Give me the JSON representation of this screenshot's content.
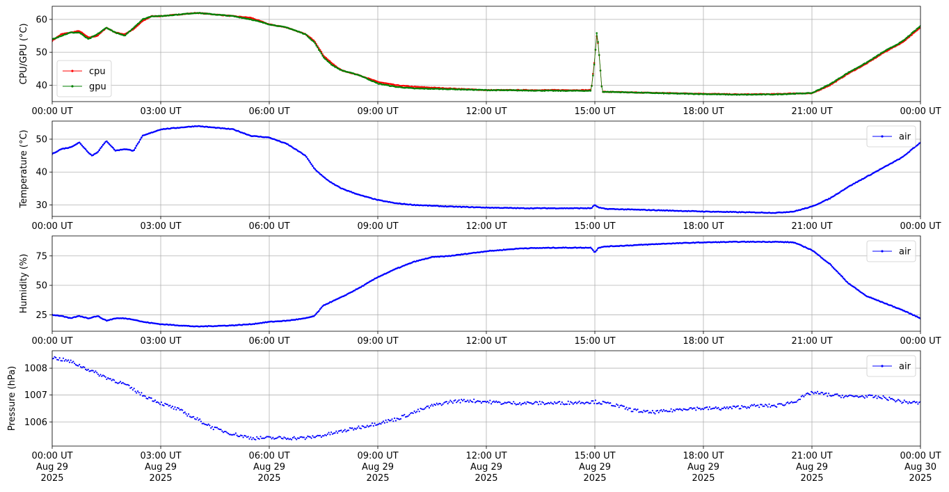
{
  "chart_data": [
    {
      "type": "line",
      "ylabel": "CPU/GPU (°C)",
      "xlim": [
        "00:00",
        "24:00"
      ],
      "ylim": [
        35,
        64
      ],
      "yticks": [
        40,
        50,
        60
      ],
      "xtick_labels": [
        "00:00 UT",
        "03:00 UT",
        "06:00 UT",
        "09:00 UT",
        "12:00 UT",
        "15:00 UT",
        "18:00 UT",
        "21:00 UT",
        "00:00 UT"
      ],
      "grid": true,
      "legend": "lower-left",
      "series": [
        {
          "name": "cpu",
          "color": "#ff0000",
          "x": [
            0,
            0.25,
            0.5,
            0.75,
            1.0,
            1.25,
            1.5,
            1.75,
            2.0,
            2.25,
            2.5,
            2.75,
            3.0,
            3.5,
            4.0,
            4.5,
            5.0,
            5.5,
            6.0,
            6.5,
            7.0,
            7.25,
            7.5,
            7.75,
            8.0,
            8.5,
            9.0,
            9.5,
            10.0,
            11,
            12,
            13,
            14,
            14.9,
            15.0,
            15.05,
            15.1,
            15.2,
            16,
            17,
            18,
            19,
            20,
            20.5,
            21.0,
            21.5,
            22.0,
            22.5,
            23.0,
            23.5,
            24.0
          ],
          "y": [
            53.5,
            55.5,
            56.0,
            56.5,
            54.5,
            55.0,
            57.5,
            56.0,
            55.5,
            57.0,
            59.5,
            61.0,
            61.0,
            61.5,
            62.0,
            61.5,
            61.0,
            60.5,
            58.5,
            57.5,
            55.5,
            53.5,
            49.0,
            46.5,
            44.5,
            43.0,
            41.0,
            40.0,
            39.5,
            39.0,
            38.5,
            38.5,
            38.5,
            38.5,
            48.5,
            55.0,
            52.0,
            38.0,
            37.8,
            37.6,
            37.4,
            37.2,
            37.3,
            37.5,
            37.5,
            40.0,
            43.5,
            46.5,
            50.0,
            53.0,
            57.5
          ]
        },
        {
          "name": "gpu",
          "color": "#008000",
          "x": [
            0,
            0.25,
            0.5,
            0.75,
            1.0,
            1.25,
            1.5,
            1.75,
            2.0,
            2.25,
            2.5,
            2.75,
            3.0,
            3.5,
            4.0,
            4.5,
            5.0,
            5.5,
            6.0,
            6.5,
            7.0,
            7.25,
            7.5,
            7.75,
            8.0,
            8.5,
            9.0,
            9.5,
            10.0,
            11,
            12,
            13,
            14,
            14.9,
            15.0,
            15.05,
            15.1,
            15.2,
            16,
            17,
            18,
            19,
            20,
            20.5,
            21.0,
            21.5,
            22.0,
            22.5,
            23.0,
            23.5,
            24.0
          ],
          "y": [
            54.0,
            55.0,
            56.0,
            56.0,
            54.0,
            55.5,
            57.5,
            56.0,
            55.0,
            57.5,
            60.0,
            61.0,
            61.0,
            61.5,
            62.0,
            61.5,
            61.0,
            60.0,
            58.5,
            57.5,
            55.5,
            53.0,
            48.5,
            46.0,
            44.5,
            43.0,
            40.5,
            39.5,
            39.0,
            38.8,
            38.5,
            38.4,
            38.3,
            38.3,
            48.0,
            56.0,
            52.0,
            38.0,
            37.8,
            37.5,
            37.3,
            37.1,
            37.2,
            37.4,
            37.6,
            40.3,
            43.8,
            46.8,
            50.3,
            53.3,
            58.0
          ]
        }
      ]
    },
    {
      "type": "line",
      "ylabel": "Temperature (°C)",
      "xlim": [
        "00:00",
        "24:00"
      ],
      "ylim": [
        26.5,
        55.5
      ],
      "yticks": [
        30,
        40,
        50
      ],
      "xtick_labels": [
        "00:00 UT",
        "03:00 UT",
        "06:00 UT",
        "09:00 UT",
        "12:00 UT",
        "15:00 UT",
        "18:00 UT",
        "21:00 UT",
        "00:00 UT"
      ],
      "grid": true,
      "legend": "upper-right",
      "series": [
        {
          "name": "air",
          "color": "#0000ff",
          "x": [
            0,
            0.25,
            0.5,
            0.75,
            1.0,
            1.1,
            1.25,
            1.5,
            1.75,
            2.0,
            2.25,
            2.5,
            2.75,
            3.0,
            3.5,
            4.0,
            4.5,
            5.0,
            5.5,
            6.0,
            6.5,
            7.0,
            7.25,
            7.5,
            7.75,
            8.0,
            8.5,
            9.0,
            9.5,
            10.0,
            11,
            12,
            13,
            14,
            14.9,
            15.0,
            15.1,
            15.3,
            16,
            17,
            18,
            19,
            20,
            20.5,
            21.0,
            21.5,
            22.0,
            22.5,
            23.0,
            23.5,
            24.0
          ],
          "y": [
            45.5,
            47.0,
            47.5,
            49.0,
            46.0,
            45.0,
            46.0,
            49.5,
            46.5,
            47.0,
            46.5,
            51.0,
            52.0,
            53.0,
            53.5,
            54.0,
            53.5,
            53.0,
            51.0,
            50.5,
            48.5,
            45.0,
            41.0,
            38.5,
            36.5,
            35.0,
            33.0,
            31.5,
            30.5,
            30.0,
            29.5,
            29.2,
            29.0,
            29.0,
            29.0,
            30.0,
            29.2,
            28.8,
            28.6,
            28.3,
            28.0,
            27.8,
            27.6,
            28.0,
            29.5,
            32.0,
            35.5,
            38.5,
            41.5,
            44.5,
            49.0
          ]
        }
      ]
    },
    {
      "type": "line",
      "ylabel": "Humidity (%)",
      "xlim": [
        "00:00",
        "24:00"
      ],
      "ylim": [
        11,
        92
      ],
      "yticks": [
        25,
        50,
        75
      ],
      "xtick_labels": [
        "00:00 UT",
        "03:00 UT",
        "06:00 UT",
        "09:00 UT",
        "12:00 UT",
        "15:00 UT",
        "18:00 UT",
        "21:00 UT",
        "00:00 UT"
      ],
      "grid": true,
      "legend": "upper-right",
      "series": [
        {
          "name": "air",
          "color": "#0000ff",
          "x": [
            0,
            0.25,
            0.5,
            0.75,
            1.0,
            1.25,
            1.5,
            1.75,
            2.0,
            2.25,
            2.5,
            2.75,
            3.0,
            3.5,
            4.0,
            4.5,
            5.0,
            5.5,
            6.0,
            6.5,
            7.0,
            7.25,
            7.5,
            8.0,
            8.5,
            9.0,
            9.5,
            10.0,
            10.5,
            11,
            12,
            13,
            14,
            14.9,
            15.0,
            15.1,
            15.3,
            16,
            17,
            18,
            19,
            19.5,
            20,
            20.5,
            21.0,
            21.5,
            22.0,
            22.5,
            23.0,
            23.5,
            24.0
          ],
          "y": [
            25.0,
            24.0,
            22.0,
            24.0,
            22.0,
            24.0,
            20.0,
            22.0,
            22.0,
            21.0,
            19.0,
            18.0,
            17.0,
            16.0,
            15.0,
            15.5,
            16.0,
            17.0,
            19.0,
            20.0,
            22.0,
            24.0,
            33.0,
            40.0,
            48.0,
            57.0,
            64.0,
            70.0,
            74.0,
            75.0,
            79.0,
            81.5,
            82.0,
            82.0,
            78.0,
            82.0,
            83.0,
            84.0,
            85.5,
            86.5,
            87.0,
            87.0,
            87.0,
            86.5,
            80.0,
            68.0,
            52.0,
            41.0,
            35.0,
            29.0,
            22.0
          ]
        }
      ]
    },
    {
      "type": "scatter",
      "ylabel": "Pressure (hPa)",
      "xlim": [
        "2025-08-29 00:00",
        "2025-08-30 00:00"
      ],
      "ylim": [
        1005.1,
        1008.65
      ],
      "yticks": [
        1006,
        1007,
        1008
      ],
      "xtick_labels": [
        [
          "00:00 UT",
          "Aug 29",
          "2025"
        ],
        [
          "03:00 UT",
          "Aug 29",
          "2025"
        ],
        [
          "06:00 UT",
          "Aug 29",
          "2025"
        ],
        [
          "09:00 UT",
          "Aug 29",
          "2025"
        ],
        [
          "12:00 UT",
          "Aug 29",
          "2025"
        ],
        [
          "15:00 UT",
          "Aug 29",
          "2025"
        ],
        [
          "18:00 UT",
          "Aug 29",
          "2025"
        ],
        [
          "21:00 UT",
          "Aug 29",
          "2025"
        ],
        [
          "00:00 UT",
          "Aug 30",
          "2025"
        ]
      ],
      "grid": true,
      "legend": "upper-right",
      "series": [
        {
          "name": "air",
          "color": "#0000ff",
          "x": [
            0,
            0.5,
            1.0,
            1.5,
            2.0,
            2.5,
            3.0,
            3.5,
            4.0,
            4.5,
            5.0,
            5.5,
            6.0,
            6.5,
            7.0,
            7.5,
            8.0,
            8.5,
            9.0,
            9.5,
            10.0,
            10.5,
            11.0,
            11.5,
            12.0,
            12.5,
            13.0,
            14.0,
            15.0,
            15.5,
            16.0,
            16.5,
            17.0,
            17.5,
            18.0,
            18.5,
            19.0,
            19.5,
            20.0,
            20.5,
            21.0,
            21.5,
            22.0,
            22.5,
            23.0,
            23.5,
            24.0
          ],
          "y": [
            1008.4,
            1008.25,
            1007.95,
            1007.65,
            1007.4,
            1007.0,
            1006.7,
            1006.45,
            1006.1,
            1005.75,
            1005.55,
            1005.4,
            1005.4,
            1005.4,
            1005.4,
            1005.5,
            1005.65,
            1005.8,
            1005.95,
            1006.1,
            1006.35,
            1006.6,
            1006.75,
            1006.8,
            1006.75,
            1006.7,
            1006.7,
            1006.7,
            1006.75,
            1006.65,
            1006.45,
            1006.35,
            1006.4,
            1006.5,
            1006.5,
            1006.5,
            1006.55,
            1006.6,
            1006.6,
            1006.75,
            1007.1,
            1007.0,
            1006.95,
            1006.95,
            1006.9,
            1006.75,
            1006.7
          ]
        }
      ]
    }
  ]
}
